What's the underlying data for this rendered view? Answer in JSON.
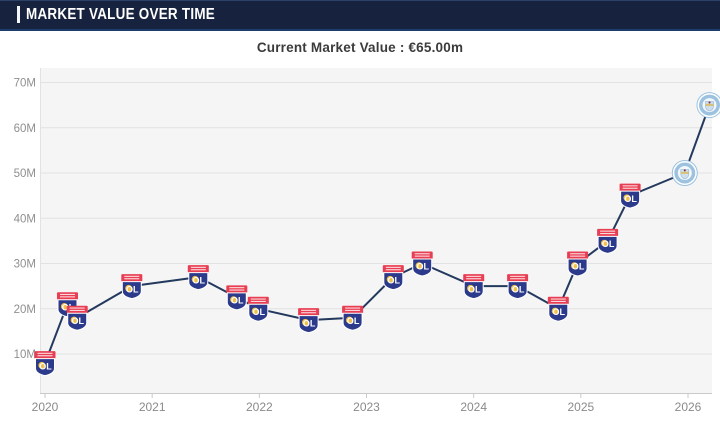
{
  "header": {
    "title": "MARKET VALUE OVER TIME"
  },
  "subtitle": "Current Market Value : €65.00m",
  "colors": {
    "header_bg": "#17233e",
    "header_border": "#1e3c6e",
    "plot_bg": "#f5f5f6",
    "grid": "#e2e2e2",
    "axis": "#c9c9c9",
    "tick_label": "#8f8f8f",
    "line": "#24395e",
    "ol_red": "#e83e53",
    "ol_blue": "#2c3a8c",
    "ol_gold": "#f0c04a",
    "city_ring": "#9cc2e0",
    "city_inner": "#f2f7fb",
    "city_shield": "#cfdeed"
  },
  "chart_data": {
    "type": "line",
    "title": "Market value over time",
    "subtitle": "Current Market Value : €65.00m",
    "unit": "€ million",
    "current_value": "€65.00m",
    "grid": true,
    "legend_position": "none",
    "ylim": [
      1.4,
      73
    ],
    "xlim": [
      2019.95,
      2026.27
    ],
    "y_ticks": [
      {
        "label": "10M",
        "value": 10
      },
      {
        "label": "20M",
        "value": 20
      },
      {
        "label": "30M",
        "value": 30
      },
      {
        "label": "40M",
        "value": 40
      },
      {
        "label": "50M",
        "value": 50
      },
      {
        "label": "60M",
        "value": 60
      },
      {
        "label": "70M",
        "value": 70
      }
    ],
    "x_ticks": [
      {
        "label": "2020",
        "year": 2020
      },
      {
        "label": "2021",
        "year": 2021
      },
      {
        "label": "2022",
        "year": 2022
      },
      {
        "label": "2023",
        "year": 2023
      },
      {
        "label": "2024",
        "year": 2024
      },
      {
        "label": "2025",
        "year": 2025
      },
      {
        "label": "2026",
        "year": 2026
      }
    ],
    "clubs": {
      "OL": "Olympique Lyonnais",
      "MCI": "Manchester City"
    },
    "points": [
      {
        "year": 2020.0,
        "value": 8,
        "club": "OL"
      },
      {
        "year": 2020.21,
        "value": 21,
        "club": "OL"
      },
      {
        "year": 2020.3,
        "value": 18,
        "club": "OL"
      },
      {
        "year": 2020.81,
        "value": 25,
        "club": "OL"
      },
      {
        "year": 2021.43,
        "value": 27,
        "club": "OL"
      },
      {
        "year": 2021.79,
        "value": 22.5,
        "club": "OL"
      },
      {
        "year": 2021.99,
        "value": 20,
        "club": "OL"
      },
      {
        "year": 2022.46,
        "value": 17.5,
        "club": "OL"
      },
      {
        "year": 2022.87,
        "value": 18,
        "club": "OL"
      },
      {
        "year": 2023.25,
        "value": 27,
        "club": "OL"
      },
      {
        "year": 2023.52,
        "value": 30,
        "club": "OL"
      },
      {
        "year": 2024.0,
        "value": 25,
        "club": "OL"
      },
      {
        "year": 2024.41,
        "value": 25,
        "club": "OL"
      },
      {
        "year": 2024.79,
        "value": 20,
        "club": "OL"
      },
      {
        "year": 2024.97,
        "value": 30,
        "club": "OL"
      },
      {
        "year": 2025.25,
        "value": 35,
        "club": "OL"
      },
      {
        "year": 2025.46,
        "value": 45,
        "club": "OL"
      },
      {
        "year": 2025.97,
        "value": 50,
        "club": "MCI"
      },
      {
        "year": 2026.2,
        "value": 65,
        "club": "MCI"
      }
    ]
  }
}
